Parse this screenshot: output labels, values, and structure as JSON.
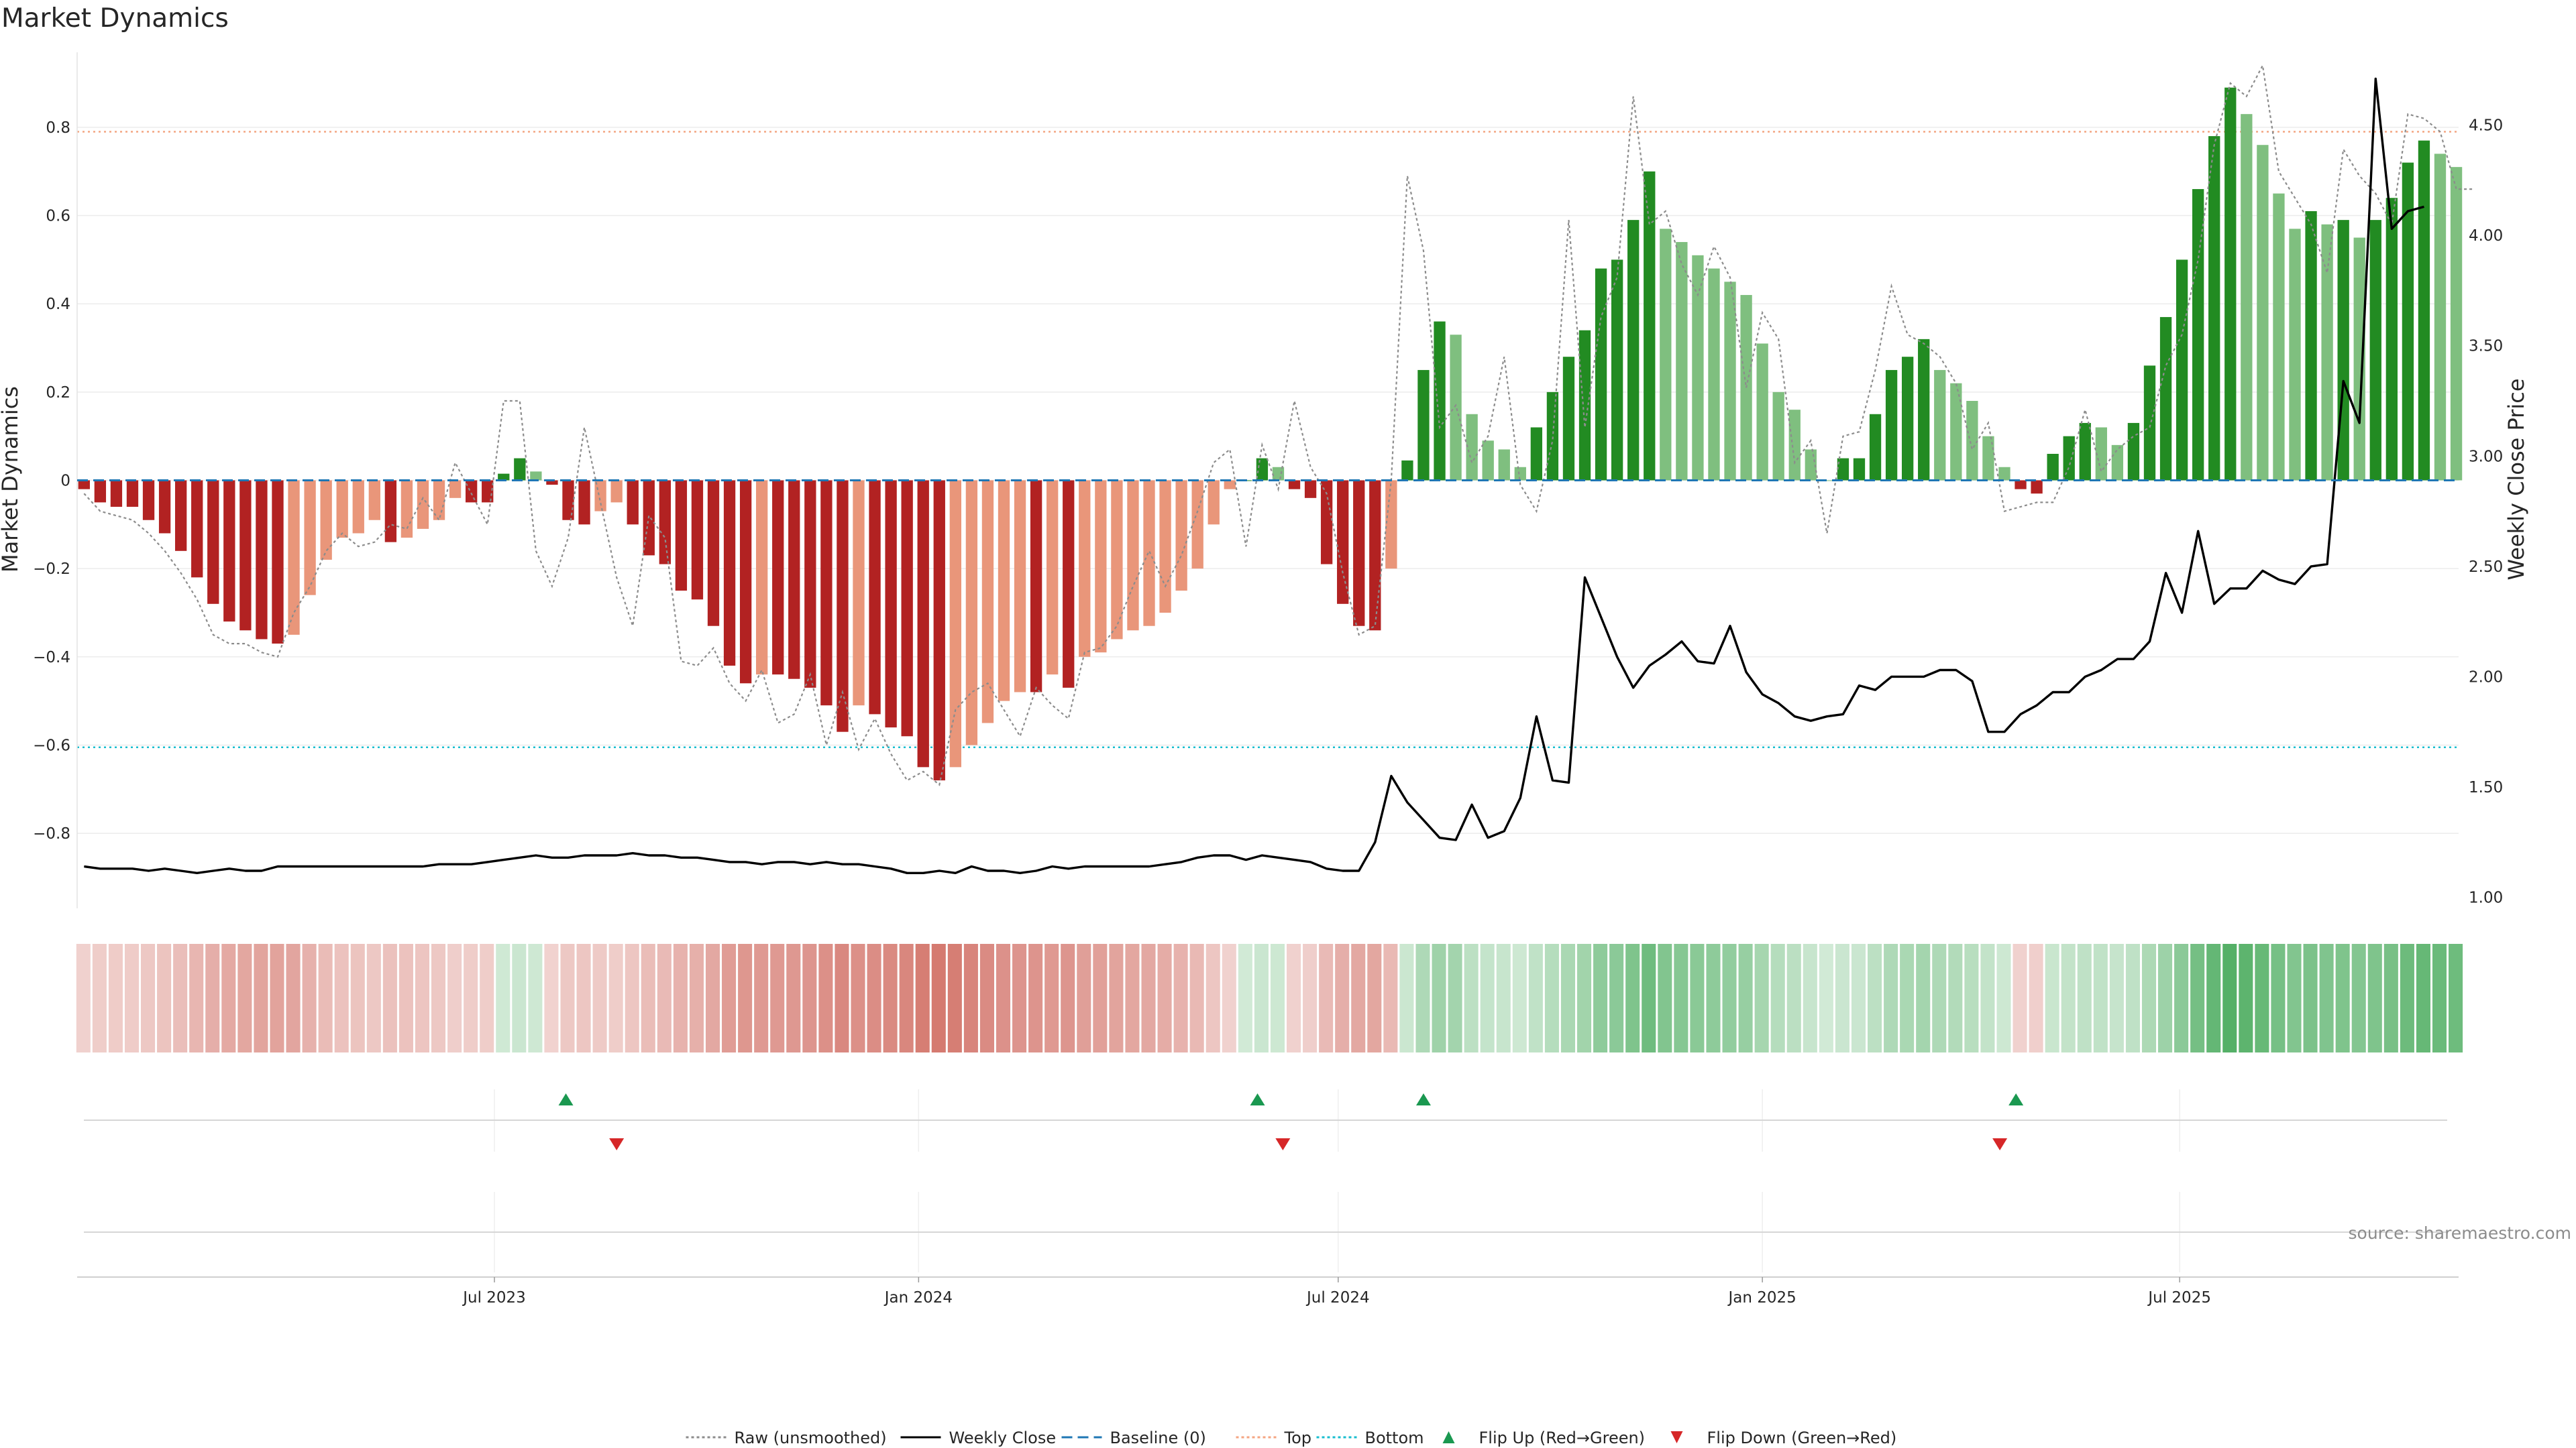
{
  "title": "Market Dynamics",
  "source": "source: sharemaestro.com",
  "colors": {
    "strong_red": "#b22222",
    "weak_red": "#e9967a",
    "strong_green": "#228b22",
    "weak_green": "#7fbf7f",
    "raw": "#8c8c8c",
    "close": "#000000",
    "baseline": "#1f77b4",
    "top": "#f4a582",
    "bottom": "#17becf",
    "flip_up": "#1a9850",
    "flip_down": "#d62728"
  },
  "chart_data": {
    "type": "bar",
    "title": "Market Dynamics",
    "ylabel": "Market Dynamics",
    "y2label": "Weekly Close Price",
    "ylim": [
      -0.97,
      0.97
    ],
    "y2lim": [
      0.95,
      4.83
    ],
    "yticks": [
      -0.8,
      -0.6,
      -0.4,
      -0.2,
      0,
      0.2,
      0.4,
      0.6,
      0.8
    ],
    "ytick_labels": [
      "−0.8",
      "−0.6",
      "−0.4",
      "−0.2",
      "0",
      "0.2",
      "0.4",
      "0.6",
      "0.8"
    ],
    "y2ticks": [
      1.0,
      1.5,
      2.0,
      2.5,
      3.0,
      3.5,
      4.0,
      4.5
    ],
    "y2tick_labels": [
      "1.00",
      "1.50",
      "2.00",
      "2.50",
      "3.00",
      "3.50",
      "4.00",
      "4.50"
    ],
    "x_start": "2023-01-01",
    "x_end": "2025-10-30",
    "xticks": [
      {
        "date": "2023-07-01",
        "label": "Jul 2023"
      },
      {
        "date": "2024-01-01",
        "label": "Jan 2024"
      },
      {
        "date": "2024-07-01",
        "label": "Jul 2024"
      },
      {
        "date": "2025-01-01",
        "label": "Jan 2025"
      },
      {
        "date": "2025-07-01",
        "label": "Jul 2025"
      }
    ],
    "first_week": "2023-01-04",
    "reference_lines": {
      "top": 0.79,
      "bottom": -0.605,
      "baseline": 0
    },
    "dynamics": [
      -0.02,
      -0.05,
      -0.06,
      -0.06,
      -0.09,
      -0.12,
      -0.16,
      -0.22,
      -0.28,
      -0.32,
      -0.34,
      -0.36,
      -0.37,
      -0.35,
      -0.26,
      -0.18,
      -0.13,
      -0.12,
      -0.09,
      -0.14,
      -0.13,
      -0.11,
      -0.09,
      -0.04,
      -0.05,
      -0.05,
      0.015,
      0.05,
      0.02,
      -0.01,
      -0.09,
      -0.1,
      -0.07,
      -0.05,
      -0.1,
      -0.17,
      -0.19,
      -0.25,
      -0.27,
      -0.33,
      -0.42,
      -0.46,
      -0.44,
      -0.44,
      -0.45,
      -0.47,
      -0.51,
      -0.57,
      -0.51,
      -0.53,
      -0.56,
      -0.58,
      -0.65,
      -0.68,
      -0.65,
      -0.6,
      -0.55,
      -0.5,
      -0.48,
      -0.48,
      -0.44,
      -0.47,
      -0.4,
      -0.39,
      -0.36,
      -0.34,
      -0.33,
      -0.3,
      -0.25,
      -0.2,
      -0.1,
      -0.02,
      0.0,
      0.05,
      0.03,
      -0.02,
      -0.04,
      -0.19,
      -0.28,
      -0.33,
      -0.34,
      -0.2,
      0.045,
      0.25,
      0.36,
      0.33,
      0.15,
      0.09,
      0.07,
      0.03,
      0.12,
      0.2,
      0.28,
      0.34,
      0.48,
      0.5,
      0.59,
      0.7,
      0.57,
      0.54,
      0.51,
      0.48,
      0.45,
      0.42,
      0.31,
      0.2,
      0.16,
      0.07,
      0.0,
      0.05,
      0.05,
      0.15,
      0.25,
      0.28,
      0.32,
      0.25,
      0.22,
      0.18,
      0.1,
      0.03,
      -0.02,
      -0.03,
      0.06,
      0.1,
      0.13,
      0.12,
      0.08,
      0.13,
      0.26,
      0.37,
      0.5,
      0.66,
      0.78,
      0.89,
      0.83,
      0.76,
      0.65,
      0.57,
      0.61,
      0.58,
      0.59,
      0.55,
      0.59,
      0.64,
      0.72,
      0.77,
      0.74,
      0.71
    ],
    "raw": [
      -0.03,
      -0.07,
      -0.08,
      -0.09,
      -0.12,
      -0.16,
      -0.21,
      -0.27,
      -0.35,
      -0.37,
      -0.37,
      -0.39,
      -0.4,
      -0.3,
      -0.24,
      -0.16,
      -0.12,
      -0.15,
      -0.14,
      -0.1,
      -0.11,
      -0.04,
      -0.09,
      0.04,
      -0.03,
      -0.1,
      0.18,
      0.18,
      -0.16,
      -0.24,
      -0.13,
      0.12,
      -0.05,
      -0.22,
      -0.33,
      -0.08,
      -0.13,
      -0.41,
      -0.42,
      -0.38,
      -0.46,
      -0.5,
      -0.43,
      -0.55,
      -0.53,
      -0.44,
      -0.6,
      -0.48,
      -0.61,
      -0.54,
      -0.62,
      -0.68,
      -0.66,
      -0.69,
      -0.52,
      -0.48,
      -0.46,
      -0.52,
      -0.58,
      -0.47,
      -0.51,
      -0.54,
      -0.39,
      -0.38,
      -0.33,
      -0.24,
      -0.16,
      -0.24,
      -0.17,
      -0.07,
      0.04,
      0.07,
      -0.15,
      0.08,
      -0.02,
      0.18,
      0.03,
      -0.03,
      -0.21,
      -0.35,
      -0.33,
      0.0,
      0.69,
      0.52,
      0.12,
      0.17,
      0.04,
      0.1,
      0.28,
      -0.01,
      -0.07,
      0.09,
      0.59,
      0.12,
      0.37,
      0.46,
      0.87,
      0.58,
      0.61,
      0.49,
      0.42,
      0.53,
      0.46,
      0.21,
      0.38,
      0.32,
      0.04,
      0.09,
      -0.12,
      0.1,
      0.11,
      0.25,
      0.44,
      0.33,
      0.31,
      0.28,
      0.22,
      0.07,
      0.13,
      -0.07,
      -0.06,
      -0.05,
      -0.05,
      0.03,
      0.16,
      0.02,
      0.07,
      0.1,
      0.12,
      0.26,
      0.33,
      0.5,
      0.76,
      0.9,
      0.87,
      0.94,
      0.7,
      0.64,
      0.58,
      0.47,
      0.75,
      0.69,
      0.65,
      0.58,
      0.83,
      0.82,
      0.79,
      0.66,
      0.66
    ],
    "close": [
      1.14,
      1.13,
      1.13,
      1.13,
      1.12,
      1.13,
      1.12,
      1.11,
      1.12,
      1.13,
      1.12,
      1.12,
      1.14,
      1.14,
      1.14,
      1.14,
      1.14,
      1.14,
      1.14,
      1.14,
      1.14,
      1.14,
      1.15,
      1.15,
      1.15,
      1.16,
      1.17,
      1.18,
      1.19,
      1.18,
      1.18,
      1.19,
      1.19,
      1.19,
      1.2,
      1.19,
      1.19,
      1.18,
      1.18,
      1.17,
      1.16,
      1.16,
      1.15,
      1.16,
      1.16,
      1.15,
      1.16,
      1.15,
      1.15,
      1.14,
      1.13,
      1.11,
      1.11,
      1.12,
      1.11,
      1.14,
      1.12,
      1.12,
      1.11,
      1.12,
      1.14,
      1.13,
      1.14,
      1.14,
      1.14,
      1.14,
      1.14,
      1.15,
      1.16,
      1.18,
      1.19,
      1.19,
      1.17,
      1.19,
      1.18,
      1.17,
      1.16,
      1.13,
      1.12,
      1.12,
      1.25,
      1.55,
      1.43,
      1.35,
      1.27,
      1.26,
      1.42,
      1.27,
      1.3,
      1.45,
      1.82,
      1.53,
      1.52,
      2.45,
      2.27,
      2.09,
      1.95,
      2.05,
      2.1,
      2.16,
      2.07,
      2.06,
      2.23,
      2.02,
      1.92,
      1.88,
      1.82,
      1.8,
      1.82,
      1.83,
      1.96,
      1.94,
      2.0,
      2.0,
      2.0,
      2.03,
      2.03,
      1.98,
      1.75,
      1.75,
      1.83,
      1.87,
      1.93,
      1.93,
      2.0,
      2.03,
      2.08,
      2.08,
      2.16,
      2.47,
      2.29,
      2.66,
      2.33,
      2.4,
      2.4,
      2.48,
      2.44,
      2.42,
      2.5,
      2.51,
      3.34,
      3.15,
      4.71,
      4.03,
      4.11,
      4.13
    ],
    "flip_up_dates": [
      "2023-08-01",
      "2024-05-27",
      "2024-08-07",
      "2025-04-21"
    ],
    "flip_down_dates": [
      "2023-08-23",
      "2024-06-07",
      "2025-04-14"
    ],
    "legend": [
      {
        "label": "Raw (unsmoothed)",
        "kind": "dotted-line",
        "color": "#8c8c8c"
      },
      {
        "label": "Weekly Close",
        "kind": "line",
        "color": "#000000"
      },
      {
        "label": "Baseline (0)",
        "kind": "dashed-line",
        "color": "#1f77b4"
      },
      {
        "label": "Top",
        "kind": "dotted-line",
        "color": "#f4a582"
      },
      {
        "label": "Bottom",
        "kind": "dotted-line",
        "color": "#17becf"
      },
      {
        "label": "Flip Up (Red→Green)",
        "kind": "up-triangle",
        "color": "#1a9850"
      },
      {
        "label": "Flip Down (Green→Red)",
        "kind": "down-triangle",
        "color": "#d62728"
      }
    ],
    "legend_position": "bottom-center",
    "grid": "horizontal"
  }
}
